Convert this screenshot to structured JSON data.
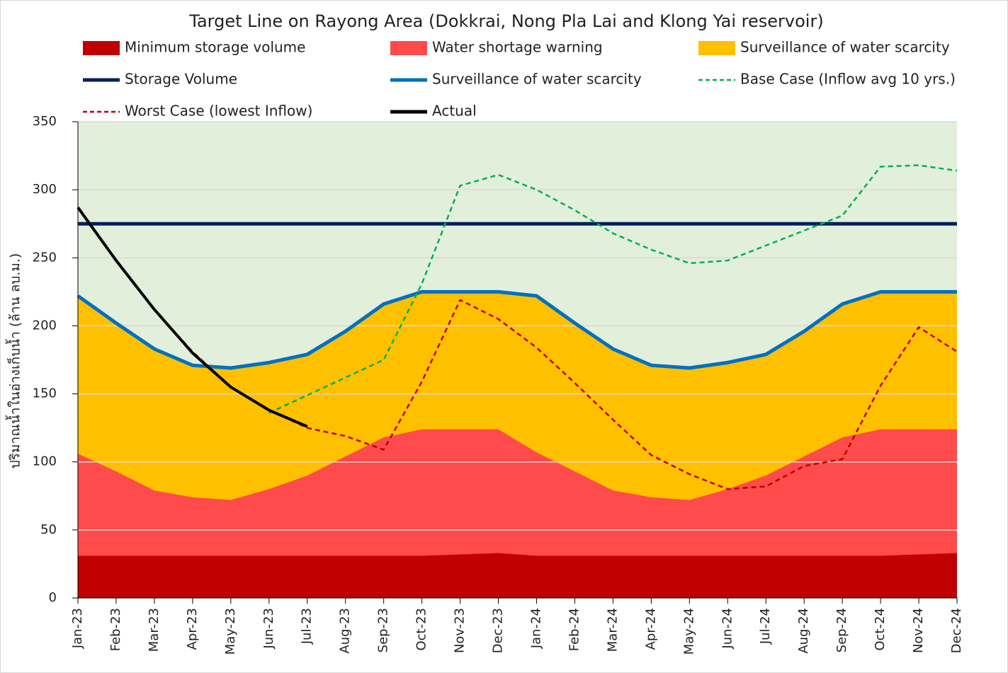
{
  "chart_data": {
    "type": "line",
    "title": "Target Line on Rayong Area (Dokkrai, Nong Pla Lai and Klong Yai reservoir)",
    "y_label": "ปริมาณน้ำในอ่างเก็บน้ำ (ล้าน ลบ.ม.)",
    "categories": [
      "Jan-23",
      "Feb-23",
      "Mar-23",
      "Apr-23",
      "May-23",
      "Jun-23",
      "Jul-23",
      "Aug-23",
      "Sep-23",
      "Oct-23",
      "Nov-23",
      "Dec-23",
      "Jan-24",
      "Feb-24",
      "Mar-24",
      "Apr-24",
      "May-24",
      "Jun-24",
      "Jul-24",
      "Aug-24",
      "Sep-24",
      "Oct-24",
      "Nov-24",
      "Dec-24"
    ],
    "ylim": [
      0,
      350
    ],
    "yticks": [
      0,
      50,
      100,
      150,
      200,
      250,
      300,
      350
    ],
    "grid": true,
    "plot_background": "#e2efda",
    "series": [
      {
        "name": "Minimum storage volume",
        "style": "area",
        "color": "#c00000",
        "values": [
          31,
          31,
          31,
          31,
          31,
          31,
          31,
          31,
          31,
          31,
          32,
          33,
          31,
          31,
          31,
          31,
          31,
          31,
          31,
          31,
          31,
          31,
          32,
          33
        ]
      },
      {
        "name": "Water shortage warning",
        "style": "area",
        "color": "#ff4b4b",
        "values": [
          106,
          93,
          79,
          74,
          72,
          80,
          90,
          104,
          118,
          124,
          124,
          124,
          107,
          93,
          79,
          74,
          72,
          80,
          90,
          104,
          118,
          124,
          124,
          124
        ]
      },
      {
        "name": "Surveillance of water scarcity",
        "style": "area",
        "color": "#ffc000",
        "values": [
          222,
          202,
          183,
          171,
          169,
          173,
          179,
          196,
          216,
          225,
          225,
          225,
          222,
          202,
          183,
          171,
          169,
          173,
          179,
          196,
          216,
          225,
          225,
          225
        ]
      },
      {
        "name": "Storage Volume",
        "style": "line",
        "color": "#002060",
        "values": [
          275,
          275,
          275,
          275,
          275,
          275,
          275,
          275,
          275,
          275,
          275,
          275,
          275,
          275,
          275,
          275,
          275,
          275,
          275,
          275,
          275,
          275,
          275,
          275
        ]
      },
      {
        "name": "Surveillance of water scarcity",
        "style": "line",
        "color": "#0070c0",
        "values": [
          222,
          202,
          183,
          171,
          169,
          173,
          179,
          196,
          216,
          225,
          225,
          225,
          222,
          202,
          183,
          171,
          169,
          173,
          179,
          196,
          216,
          225,
          225,
          225
        ]
      },
      {
        "name": "Base Case (Inflow avg 10 yrs.)",
        "style": "dashed",
        "color": "#00b050",
        "values": [
          null,
          null,
          null,
          null,
          null,
          136,
          149,
          162,
          175,
          231,
          303,
          311,
          300,
          285,
          268,
          256,
          246,
          248,
          259,
          270,
          281,
          317,
          318,
          314
        ]
      },
      {
        "name": "Worst Case (lowest Inflow)",
        "style": "dashed",
        "color": "#c00000",
        "values": [
          287,
          248,
          212,
          181,
          155,
          138,
          125,
          119,
          109,
          159,
          219,
          205,
          184,
          158,
          131,
          105,
          91,
          80,
          82,
          97,
          102,
          156,
          199,
          181
        ]
      },
      {
        "name": "Actual",
        "style": "line",
        "color": "#000000",
        "values": [
          287,
          248,
          212,
          180,
          155,
          138,
          126,
          null,
          null,
          null,
          null,
          null,
          null,
          null,
          null,
          null,
          null,
          null,
          null,
          null,
          null,
          null,
          null,
          null
        ]
      }
    ]
  }
}
